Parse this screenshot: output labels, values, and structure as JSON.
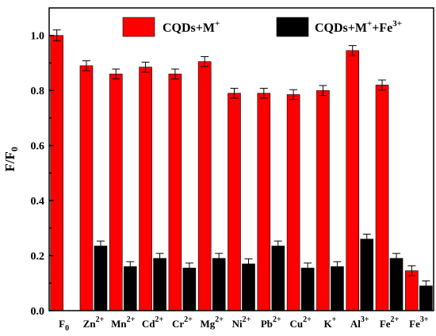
{
  "chart_data": {
    "type": "bar",
    "title": "",
    "xlabel": "",
    "ylabel": "F/F",
    "ylabel_sub": "0",
    "ylim": [
      0.0,
      1.1
    ],
    "yticks": [
      "0.0",
      "0.2",
      "0.4",
      "0.6",
      "0.8",
      "1.0"
    ],
    "grid": false,
    "legend_position": "top",
    "categories": [
      {
        "base": "F",
        "sub": "0",
        "sup": ""
      },
      {
        "base": "Zn",
        "sub": "",
        "sup": "2+"
      },
      {
        "base": "Mn",
        "sub": "",
        "sup": "2+"
      },
      {
        "base": "Cd",
        "sub": "",
        "sup": "2+"
      },
      {
        "base": "Cr",
        "sub": "",
        "sup": "2+"
      },
      {
        "base": "Mg",
        "sub": "",
        "sup": "2+"
      },
      {
        "base": "Ni",
        "sub": "",
        "sup": "2+"
      },
      {
        "base": "Pb",
        "sub": "",
        "sup": "2+"
      },
      {
        "base": "Cu",
        "sub": "",
        "sup": "2+"
      },
      {
        "base": "K",
        "sub": "",
        "sup": "+"
      },
      {
        "base": "Al",
        "sub": "",
        "sup": "3+"
      },
      {
        "base": "Fe",
        "sub": "",
        "sup": "2+"
      },
      {
        "base": "Fe",
        "sub": "",
        "sup": "3+"
      }
    ],
    "series": [
      {
        "name_base": "CQDs+M",
        "name_sup": "+",
        "name_tail": "",
        "name_tail_sup": "",
        "color": "#ff0000",
        "values": [
          1.0,
          0.89,
          0.86,
          0.885,
          0.86,
          0.905,
          0.79,
          0.79,
          0.785,
          0.8,
          0.945,
          0.82,
          0.145
        ],
        "errors": [
          0.02,
          0.018,
          0.018,
          0.018,
          0.018,
          0.018,
          0.018,
          0.018,
          0.018,
          0.018,
          0.018,
          0.018,
          0.018
        ]
      },
      {
        "name_base": "CQDs+M",
        "name_sup": "+",
        "name_tail": "+Fe",
        "name_tail_sup": "3+",
        "color": "#000000",
        "values": [
          null,
          0.235,
          0.16,
          0.19,
          0.155,
          0.19,
          0.17,
          0.235,
          0.155,
          0.16,
          0.26,
          0.19,
          0.09
        ],
        "errors": [
          null,
          0.018,
          0.018,
          0.018,
          0.018,
          0.018,
          0.018,
          0.018,
          0.018,
          0.018,
          0.018,
          0.018,
          0.018
        ]
      }
    ]
  }
}
